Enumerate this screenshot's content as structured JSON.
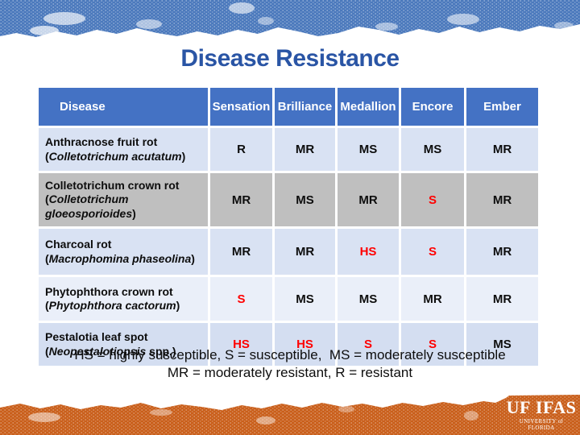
{
  "title": "Disease Resistance",
  "table": {
    "headers": [
      "Disease",
      "Sensation",
      "Brilliance",
      "Medallion",
      "Encore",
      "Ember"
    ],
    "rows": [
      {
        "disease": "Anthracnose fruit rot",
        "latin": "Colletotrichum acutatum",
        "latin_suffix": "",
        "bg": "#D9E2F3",
        "ratings": [
          {
            "v": "R",
            "red": false
          },
          {
            "v": "MR",
            "red": false
          },
          {
            "v": "MS",
            "red": false
          },
          {
            "v": "MS",
            "red": false
          },
          {
            "v": "MR",
            "red": false
          }
        ]
      },
      {
        "disease": "Colletotrichum crown rot",
        "latin": "Colletotrichum gloeosporioides",
        "latin_suffix": "",
        "bg": "#BFBFBF",
        "ratings": [
          {
            "v": "MR",
            "red": false
          },
          {
            "v": "MS",
            "red": false
          },
          {
            "v": "MR",
            "red": false
          },
          {
            "v": "S",
            "red": true
          },
          {
            "v": "MR",
            "red": false
          }
        ]
      },
      {
        "disease": "Charcoal rot",
        "latin": "Macrophomina phaseolina",
        "latin_suffix": "",
        "bg": "#D9E2F3",
        "ratings": [
          {
            "v": "MR",
            "red": false
          },
          {
            "v": "MR",
            "red": false
          },
          {
            "v": "HS",
            "red": true
          },
          {
            "v": "S",
            "red": true
          },
          {
            "v": "MR",
            "red": false
          }
        ]
      },
      {
        "disease": "Phytophthora crown rot",
        "latin": "Phytophthora cactorum",
        "latin_suffix": "",
        "bg": "#EAEFF9",
        "ratings": [
          {
            "v": "S",
            "red": true
          },
          {
            "v": "MS",
            "red": false
          },
          {
            "v": "MS",
            "red": false
          },
          {
            "v": "MR",
            "red": false
          },
          {
            "v": "MR",
            "red": false
          }
        ]
      },
      {
        "disease": "Pestalotia leaf spot",
        "latin": "Neopestalotiopsis",
        "latin_suffix": " spp.",
        "bg": "#D4DEF1",
        "ratings": [
          {
            "v": "HS",
            "red": true
          },
          {
            "v": "HS",
            "red": true
          },
          {
            "v": "S",
            "red": true
          },
          {
            "v": "S",
            "red": true
          },
          {
            "v": "MS",
            "red": false
          }
        ]
      }
    ]
  },
  "legend": {
    "line1": "HS = highly susceptible, S = susceptible,  MS = moderately susceptible",
    "line2": "MR = moderately resistant, R = resistant"
  },
  "footer_logo": {
    "uf": "UF",
    "ifas": "IFAS",
    "subtitle": "UNIVERSITY of FLORIDA"
  },
  "colors": {
    "title": "#2A55A5",
    "header_bg": "#4472C4",
    "header_text": "#FFFFFF",
    "rating_red": "#FF0000",
    "rating_black": "#0D0D0D",
    "band_blue": "#4B79BC",
    "band_orange": "#C95F1B"
  }
}
